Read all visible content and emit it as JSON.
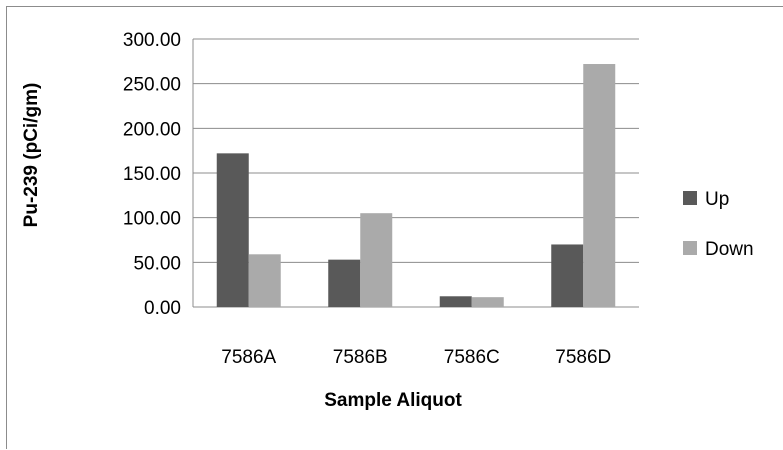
{
  "chart_data": {
    "type": "bar",
    "categories": [
      "7586A",
      "7586B",
      "7586C",
      "7586D"
    ],
    "series": [
      {
        "name": "Up",
        "values": [
          172,
          53,
          12,
          70
        ],
        "color": "#595959"
      },
      {
        "name": "Down",
        "values": [
          59,
          105,
          11,
          272
        ],
        "color": "#aaaaaa"
      }
    ],
    "y_ticks": [
      "0.00",
      "50.00",
      "100.00",
      "150.00",
      "200.00",
      "250.00",
      "300.00"
    ],
    "ylim": [
      0,
      300
    ],
    "xlabel": "Sample Aliquot",
    "ylabel": "Pu-239 (pCi/gm)",
    "grid": true,
    "legend_position": "right",
    "gridline_color": "#8c8c8c"
  }
}
